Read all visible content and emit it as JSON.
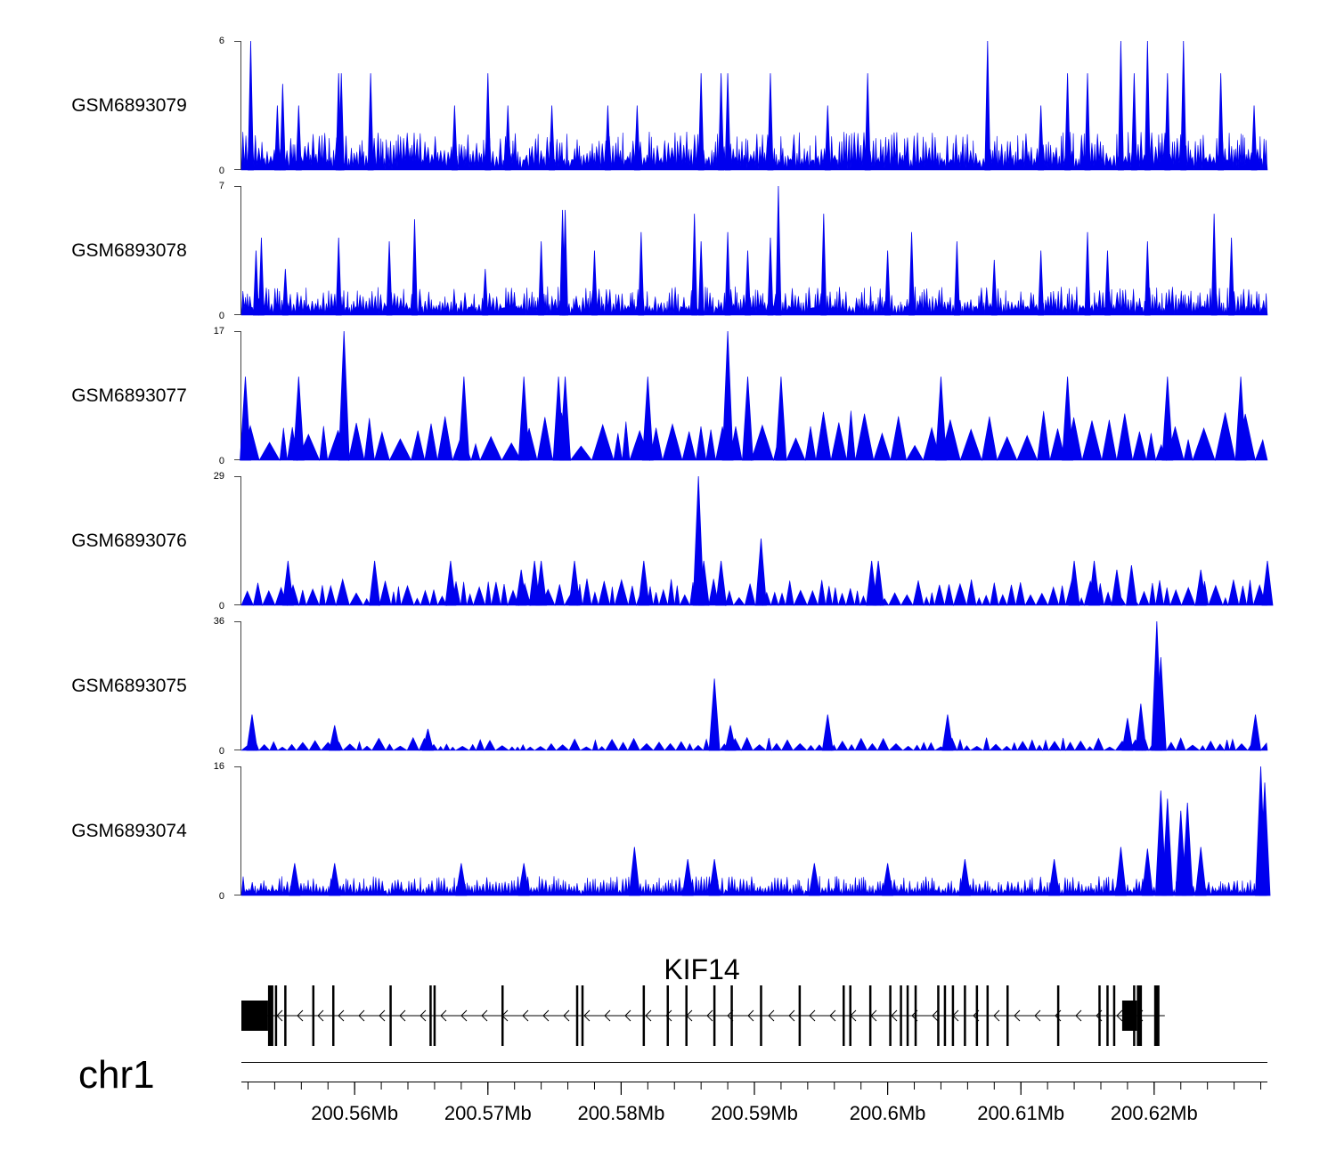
{
  "chart_data": {
    "type": "area",
    "fill_color": "#0000ee",
    "chromosome": "chr1",
    "x_range": [
      200.5515,
      200.6285
    ],
    "x_unit": "Mb",
    "x_ticks": [
      200.56,
      200.57,
      200.58,
      200.59,
      200.6,
      200.61,
      200.62
    ],
    "x_tick_labels": [
      "200.56Mb",
      "200.57Mb",
      "200.58Mb",
      "200.59Mb",
      "200.6Mb",
      "200.61Mb",
      "200.62Mb"
    ],
    "tracks": [
      {
        "name": "GSM6893079",
        "ymax": 6,
        "ymin_label": "0",
        "ymax_label": "6",
        "peaks": [
          [
            200.5522,
            6
          ],
          [
            200.5542,
            3
          ],
          [
            200.5546,
            4
          ],
          [
            200.5558,
            3
          ],
          [
            200.5588,
            4.5
          ],
          [
            200.559,
            4.5
          ],
          [
            200.5612,
            4.5
          ],
          [
            200.5675,
            3
          ],
          [
            200.57,
            4.5
          ],
          [
            200.5715,
            3
          ],
          [
            200.5748,
            3
          ],
          [
            200.579,
            3
          ],
          [
            200.5812,
            3
          ],
          [
            200.586,
            4.5
          ],
          [
            200.5875,
            4.5
          ],
          [
            200.588,
            4.5
          ],
          [
            200.5912,
            4.5
          ],
          [
            200.5955,
            3
          ],
          [
            200.5985,
            4.5
          ],
          [
            200.6075,
            6
          ],
          [
            200.6115,
            3
          ],
          [
            200.6135,
            4.5
          ],
          [
            200.615,
            4.5
          ],
          [
            200.6175,
            6
          ],
          [
            200.6185,
            4.5
          ],
          [
            200.6195,
            6
          ],
          [
            200.621,
            4.5
          ],
          [
            200.6222,
            6
          ],
          [
            200.625,
            4.5
          ],
          [
            200.6275,
            3
          ]
        ],
        "baseline": [
          1.5,
          0.8
        ]
      },
      {
        "name": "GSM6893078",
        "ymax": 7,
        "ymin_label": "0",
        "ymax_label": "7",
        "peaks": [
          [
            200.5526,
            3.5
          ],
          [
            200.553,
            4.2
          ],
          [
            200.5548,
            2.5
          ],
          [
            200.5588,
            4.2
          ],
          [
            200.5626,
            4
          ],
          [
            200.5645,
            5.2
          ],
          [
            200.5698,
            2.5
          ],
          [
            200.574,
            4
          ],
          [
            200.5756,
            5.7
          ],
          [
            200.5758,
            5.7
          ],
          [
            200.578,
            3.5
          ],
          [
            200.5815,
            4.5
          ],
          [
            200.5855,
            5.5
          ],
          [
            200.586,
            4
          ],
          [
            200.588,
            4.5
          ],
          [
            200.5895,
            3.5
          ],
          [
            200.5912,
            4.2
          ],
          [
            200.5918,
            7
          ],
          [
            200.5952,
            5.5
          ],
          [
            200.6,
            3.5
          ],
          [
            200.6018,
            4.5
          ],
          [
            200.6052,
            4
          ],
          [
            200.608,
            3
          ],
          [
            200.6115,
            3.5
          ],
          [
            200.615,
            4.5
          ],
          [
            200.6165,
            3.5
          ],
          [
            200.6195,
            4
          ],
          [
            200.6245,
            5.5
          ],
          [
            200.6258,
            4.2
          ]
        ],
        "baseline": [
          1.3,
          0.7
        ]
      },
      {
        "name": "GSM6893077",
        "ymax": 17,
        "ymin_label": "0",
        "ymax_label": "17",
        "peaks": [
          [
            200.5518,
            11
          ],
          [
            200.5558,
            11
          ],
          [
            200.5592,
            17
          ],
          [
            200.5682,
            11
          ],
          [
            200.5727,
            11
          ],
          [
            200.5753,
            11
          ],
          [
            200.5758,
            11
          ],
          [
            200.5758,
            5.5
          ],
          [
            200.582,
            11
          ],
          [
            200.588,
            17
          ],
          [
            200.5895,
            11
          ],
          [
            200.592,
            11
          ],
          [
            200.604,
            11
          ],
          [
            200.6135,
            11
          ],
          [
            200.621,
            11
          ],
          [
            200.6265,
            11
          ]
        ],
        "baseline": [
          5.5,
          0.0
        ]
      },
      {
        "name": "GSM6893076",
        "ymax": 29,
        "ymin_label": "0",
        "ymax_label": "29",
        "peaks": [
          [
            200.555,
            10
          ],
          [
            200.5615,
            10
          ],
          [
            200.5672,
            10
          ],
          [
            200.5725,
            8
          ],
          [
            200.5735,
            10
          ],
          [
            200.574,
            10
          ],
          [
            200.5765,
            10
          ],
          [
            200.5817,
            10
          ],
          [
            200.5858,
            29
          ],
          [
            200.5862,
            10
          ],
          [
            200.5875,
            10
          ],
          [
            200.5905,
            15
          ],
          [
            200.5988,
            10
          ],
          [
            200.5993,
            10
          ],
          [
            200.614,
            10
          ],
          [
            200.6155,
            10
          ],
          [
            200.6172,
            8
          ],
          [
            200.6183,
            9
          ],
          [
            200.6235,
            8
          ],
          [
            200.6285,
            10
          ]
        ],
        "baseline": [
          5,
          0.0
        ]
      },
      {
        "name": "GSM6893075",
        "ymax": 36,
        "ymin_label": "0",
        "ymax_label": "36",
        "peaks": [
          [
            200.5523,
            10
          ],
          [
            200.5585,
            7
          ],
          [
            200.5655,
            6
          ],
          [
            200.587,
            20
          ],
          [
            200.5882,
            7
          ],
          [
            200.5955,
            10
          ],
          [
            200.6045,
            10
          ],
          [
            200.618,
            9
          ],
          [
            200.619,
            13
          ],
          [
            200.6202,
            36
          ],
          [
            200.6205,
            26
          ],
          [
            200.6276,
            10
          ]
        ],
        "baseline": [
          3,
          0.0
        ]
      },
      {
        "name": "GSM6893074",
        "ymax": 16,
        "ymin_label": "0",
        "ymax_label": "16",
        "peaks": [
          [
            200.5555,
            4
          ],
          [
            200.5585,
            4
          ],
          [
            200.568,
            4
          ],
          [
            200.5727,
            4
          ],
          [
            200.581,
            6
          ],
          [
            200.585,
            4.5
          ],
          [
            200.587,
            4.5
          ],
          [
            200.5945,
            4
          ],
          [
            200.6,
            4
          ],
          [
            200.6058,
            4.5
          ],
          [
            200.6125,
            4.5
          ],
          [
            200.6175,
            6
          ],
          [
            200.6195,
            5.8
          ],
          [
            200.6205,
            13
          ],
          [
            200.621,
            12
          ],
          [
            200.622,
            10.5
          ],
          [
            200.6225,
            11.5
          ],
          [
            200.6235,
            6
          ],
          [
            200.628,
            16
          ],
          [
            200.6283,
            14
          ]
        ],
        "baseline": [
          2,
          0.8
        ]
      }
    ],
    "gene": {
      "name": "KIF14",
      "strand": "-",
      "start": 200.5515,
      "end": 200.6208,
      "utr_blocks": [
        [
          200.5515,
          200.5535
        ],
        [
          200.6176,
          200.6187
        ]
      ],
      "cds_blocks": [
        [
          200.5535,
          200.5539
        ],
        [
          200.6187,
          200.619
        ],
        [
          200.62,
          200.6204
        ]
      ],
      "exons": [
        200.5541,
        200.5548,
        200.5569,
        200.5584,
        200.5627,
        200.5657,
        200.566,
        200.5711,
        200.5767,
        200.5771,
        200.5817,
        200.5835,
        200.5849,
        200.587,
        200.5883,
        200.5905,
        200.5934,
        200.5967,
        200.5972,
        200.5987,
        200.6002,
        200.601,
        200.6015,
        200.6021,
        200.6038,
        200.6043,
        200.6049,
        200.6058,
        200.6067,
        200.6075,
        200.609,
        200.6128,
        200.6159,
        200.6165,
        200.617,
        200.6185,
        200.619
      ]
    }
  }
}
